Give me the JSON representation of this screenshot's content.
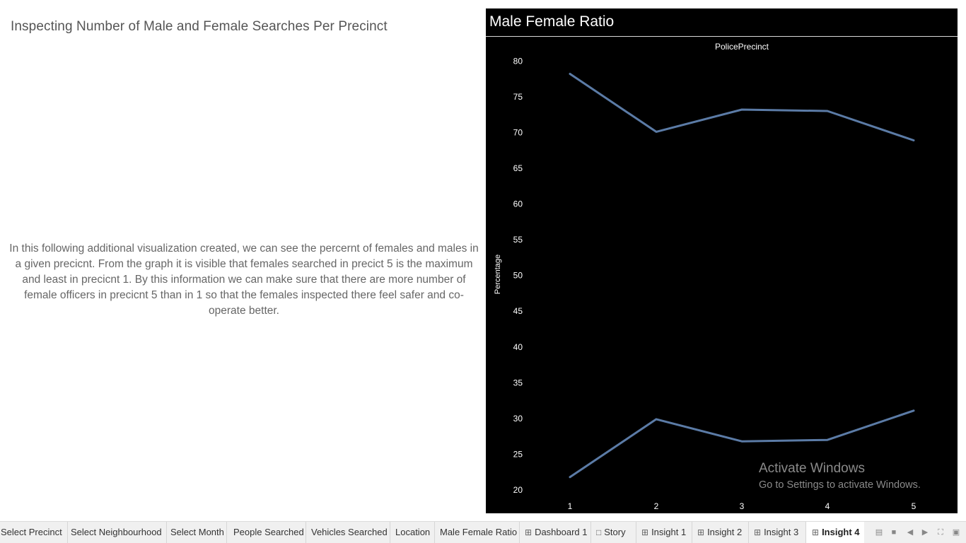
{
  "dashboard": {
    "title": "Inspecting Number of Male and Female Searches Per Precinct",
    "description": "In this following additional visualization created, we can see the percernt of females and males in a given precicnt. From the graph it is visible that females searched in precict 5 is the maximum and least in precicnt 1. By this information we can make sure that there are more number of female officers in precicnt 5 than in 1 so that the females inspected there feel safer and co-operate better."
  },
  "sheet": {
    "title": "Male Female Ratio"
  },
  "chart_data": {
    "type": "line",
    "title": "",
    "xlabel": "PolicePrecinct",
    "ylabel": "Percentage",
    "x": [
      1,
      2,
      3,
      4,
      5
    ],
    "series": [
      {
        "values": [
          78.2,
          70.1,
          73.2,
          73.0,
          68.9
        ]
      },
      {
        "values": [
          21.8,
          29.9,
          26.8,
          27.0,
          31.1
        ]
      }
    ],
    "ylim": [
      18,
      82
    ],
    "yticks": [
      20,
      25,
      30,
      35,
      40,
      45,
      50,
      55,
      60,
      65,
      70,
      75,
      80
    ],
    "grid": false,
    "line_color": "#5b7ba6",
    "background": "#000000"
  },
  "watermark": {
    "line1": "Activate Windows",
    "line2": "Go to Settings to activate Windows."
  },
  "tabs": [
    {
      "label": "Select Precinct",
      "icon": ""
    },
    {
      "label": "Select Neighbourhood",
      "icon": ""
    },
    {
      "label": "Select Month",
      "icon": ""
    },
    {
      "label": "People Searched",
      "icon": ""
    },
    {
      "label": "Vehicles Searched",
      "icon": ""
    },
    {
      "label": "Location",
      "icon": ""
    },
    {
      "label": "Male Female Ratio",
      "icon": ""
    },
    {
      "label": "Dashboard 1",
      "icon": "dashboard-icon"
    },
    {
      "label": "Story",
      "icon": "story-icon"
    },
    {
      "label": "Insight 1",
      "icon": "dashboard-icon"
    },
    {
      "label": "Insight 2",
      "icon": "dashboard-icon"
    },
    {
      "label": "Insight 3",
      "icon": "dashboard-icon"
    },
    {
      "label": "Insight 4",
      "icon": "dashboard-icon",
      "active": true
    }
  ]
}
